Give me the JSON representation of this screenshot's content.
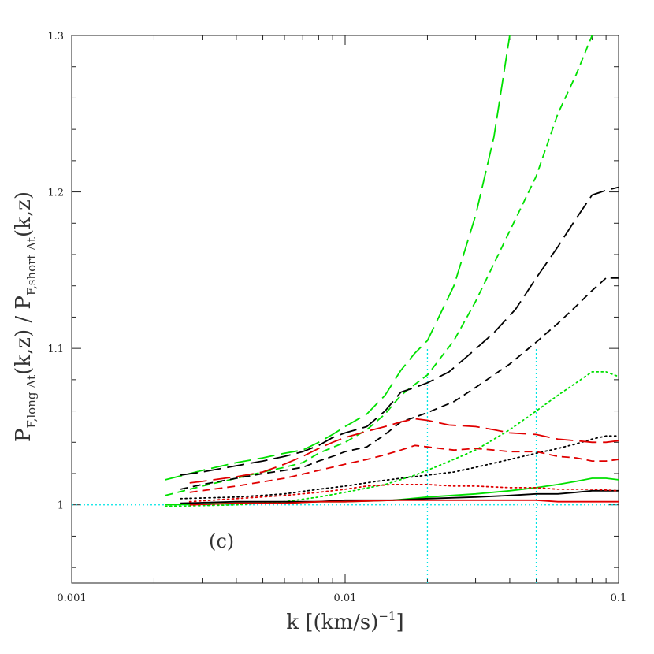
{
  "chart_data": {
    "type": "line",
    "panel_label": "(c)",
    "xlabel": "k  [(km/s)",
    "xlabel_sup": "−1",
    "xlabel_tail": "]",
    "ylabel": "P",
    "ylabel_sub1": "F,long Δt",
    "ylabel_mid": "(k,z)  /  P",
    "ylabel_sub2": "F,short Δt",
    "ylabel_tail": "(k,z)",
    "xscale": "log",
    "xlim": [
      0.001,
      0.1
    ],
    "ylim": [
      0.95,
      1.3
    ],
    "x_ticks": [
      {
        "value": 0.001,
        "label": "0.001"
      },
      {
        "value": 0.01,
        "label": "0.01"
      },
      {
        "value": 0.1,
        "label": "0.1"
      }
    ],
    "y_ticks": [
      {
        "value": 1.0,
        "label": "1"
      },
      {
        "value": 1.1,
        "label": "1.1"
      },
      {
        "value": 1.2,
        "label": "1.2"
      },
      {
        "value": 1.3,
        "label": "1.3"
      }
    ],
    "colors": {
      "black": "#000000",
      "red": "#e00000",
      "green": "#00e000",
      "reference": "#00e5e5"
    },
    "reference_lines": {
      "horizontal_y": 1.0,
      "vertical_x": [
        0.02,
        0.05
      ],
      "vertical_ymax": 1.1
    },
    "series": [
      {
        "color": "green",
        "style": "long-dash",
        "x": [
          0.0022,
          0.003,
          0.004,
          0.005,
          0.006,
          0.007,
          0.008,
          0.009,
          0.01,
          0.012,
          0.014,
          0.016,
          0.018,
          0.02,
          0.025,
          0.03,
          0.035,
          0.04
        ],
        "y": [
          1.016,
          1.022,
          1.027,
          1.03,
          1.033,
          1.035,
          1.04,
          1.045,
          1.05,
          1.058,
          1.07,
          1.086,
          1.097,
          1.105,
          1.14,
          1.185,
          1.235,
          1.3
        ]
      },
      {
        "color": "green",
        "style": "short-dash",
        "x": [
          0.0022,
          0.003,
          0.004,
          0.005,
          0.006,
          0.007,
          0.008,
          0.01,
          0.012,
          0.014,
          0.016,
          0.018,
          0.02,
          0.025,
          0.03,
          0.04,
          0.05,
          0.06,
          0.07,
          0.08
        ],
        "y": [
          1.006,
          1.012,
          1.017,
          1.021,
          1.024,
          1.027,
          1.033,
          1.04,
          1.048,
          1.058,
          1.07,
          1.077,
          1.083,
          1.105,
          1.13,
          1.175,
          1.21,
          1.25,
          1.275,
          1.3
        ]
      },
      {
        "color": "green",
        "style": "dotted",
        "x": [
          0.0022,
          0.004,
          0.006,
          0.008,
          0.01,
          0.014,
          0.018,
          0.022,
          0.03,
          0.04,
          0.05,
          0.06,
          0.07,
          0.08,
          0.09,
          0.1
        ],
        "y": [
          0.999,
          1.0,
          1.002,
          1.005,
          1.008,
          1.013,
          1.019,
          1.025,
          1.035,
          1.048,
          1.06,
          1.07,
          1.078,
          1.085,
          1.085,
          1.082
        ]
      },
      {
        "color": "green",
        "style": "solid",
        "x": [
          0.0022,
          0.004,
          0.006,
          0.008,
          0.01,
          0.015,
          0.02,
          0.03,
          0.04,
          0.05,
          0.06,
          0.07,
          0.08,
          0.09,
          0.1
        ],
        "y": [
          1.0,
          1.001,
          1.001,
          1.002,
          1.002,
          1.003,
          1.005,
          1.007,
          1.009,
          1.011,
          1.013,
          1.015,
          1.017,
          1.017,
          1.016
        ]
      },
      {
        "color": "black",
        "style": "long-dash",
        "x": [
          0.0025,
          0.003,
          0.004,
          0.005,
          0.006,
          0.007,
          0.008,
          0.009,
          0.01,
          0.012,
          0.014,
          0.016,
          0.018,
          0.02,
          0.024,
          0.028,
          0.035,
          0.042,
          0.05,
          0.06,
          0.07,
          0.08,
          0.09,
          0.1
        ],
        "y": [
          1.019,
          1.021,
          1.025,
          1.028,
          1.031,
          1.034,
          1.038,
          1.043,
          1.046,
          1.05,
          1.06,
          1.072,
          1.075,
          1.078,
          1.085,
          1.095,
          1.11,
          1.125,
          1.145,
          1.165,
          1.183,
          1.198,
          1.201,
          1.203
        ]
      },
      {
        "color": "black",
        "style": "short-dash",
        "x": [
          0.0025,
          0.003,
          0.004,
          0.005,
          0.006,
          0.007,
          0.008,
          0.009,
          0.01,
          0.012,
          0.014,
          0.016,
          0.018,
          0.02,
          0.025,
          0.03,
          0.04,
          0.05,
          0.06,
          0.07,
          0.08,
          0.09,
          0.1
        ],
        "y": [
          1.01,
          1.013,
          1.017,
          1.02,
          1.022,
          1.024,
          1.028,
          1.031,
          1.034,
          1.037,
          1.045,
          1.053,
          1.056,
          1.059,
          1.066,
          1.075,
          1.09,
          1.104,
          1.116,
          1.127,
          1.137,
          1.145,
          1.145
        ]
      },
      {
        "color": "black",
        "style": "dotted",
        "x": [
          0.0025,
          0.004,
          0.006,
          0.008,
          0.01,
          0.013,
          0.016,
          0.02,
          0.025,
          0.03,
          0.04,
          0.05,
          0.06,
          0.07,
          0.08,
          0.09,
          0.1
        ],
        "y": [
          1.004,
          1.005,
          1.007,
          1.01,
          1.012,
          1.015,
          1.017,
          1.019,
          1.021,
          1.024,
          1.029,
          1.033,
          1.036,
          1.039,
          1.042,
          1.044,
          1.044
        ]
      },
      {
        "color": "black",
        "style": "solid",
        "x": [
          0.0025,
          0.004,
          0.006,
          0.008,
          0.01,
          0.015,
          0.02,
          0.03,
          0.04,
          0.05,
          0.06,
          0.07,
          0.08,
          0.09,
          0.1
        ],
        "y": [
          1.001,
          1.002,
          1.002,
          1.002,
          1.003,
          1.003,
          1.004,
          1.005,
          1.006,
          1.007,
          1.007,
          1.008,
          1.009,
          1.009,
          1.009
        ]
      },
      {
        "color": "red",
        "style": "long-dash",
        "x": [
          0.0027,
          0.003,
          0.004,
          0.005,
          0.006,
          0.007,
          0.008,
          0.009,
          0.01,
          0.012,
          0.014,
          0.016,
          0.018,
          0.02,
          0.024,
          0.03,
          0.035,
          0.04,
          0.05,
          0.06,
          0.07,
          0.08,
          0.09,
          0.1
        ],
        "y": [
          1.014,
          1.015,
          1.018,
          1.021,
          1.026,
          1.031,
          1.036,
          1.04,
          1.043,
          1.047,
          1.05,
          1.053,
          1.055,
          1.054,
          1.051,
          1.05,
          1.048,
          1.046,
          1.045,
          1.042,
          1.041,
          1.04,
          1.04,
          1.041
        ]
      },
      {
        "color": "red",
        "style": "short-dash",
        "x": [
          0.0027,
          0.004,
          0.006,
          0.008,
          0.01,
          0.012,
          0.014,
          0.016,
          0.018,
          0.02,
          0.025,
          0.03,
          0.035,
          0.04,
          0.05,
          0.06,
          0.07,
          0.08,
          0.09,
          0.1
        ],
        "y": [
          1.008,
          1.012,
          1.017,
          1.022,
          1.026,
          1.029,
          1.032,
          1.035,
          1.038,
          1.037,
          1.035,
          1.036,
          1.035,
          1.034,
          1.034,
          1.031,
          1.03,
          1.028,
          1.028,
          1.029
        ]
      },
      {
        "color": "red",
        "style": "dotted",
        "x": [
          0.0027,
          0.004,
          0.006,
          0.008,
          0.01,
          0.012,
          0.015,
          0.02,
          0.025,
          0.03,
          0.04,
          0.05,
          0.06,
          0.08,
          0.1
        ],
        "y": [
          1.002,
          1.004,
          1.006,
          1.008,
          1.01,
          1.012,
          1.013,
          1.013,
          1.012,
          1.012,
          1.011,
          1.011,
          1.01,
          1.01,
          1.009
        ]
      },
      {
        "color": "red",
        "style": "solid",
        "x": [
          0.0027,
          0.004,
          0.006,
          0.008,
          0.01,
          0.015,
          0.02,
          0.03,
          0.04,
          0.05,
          0.06,
          0.08,
          0.1
        ],
        "y": [
          1.0,
          1.001,
          1.001,
          1.002,
          1.002,
          1.003,
          1.003,
          1.003,
          1.003,
          1.003,
          1.002,
          1.002,
          1.002
        ]
      }
    ]
  }
}
